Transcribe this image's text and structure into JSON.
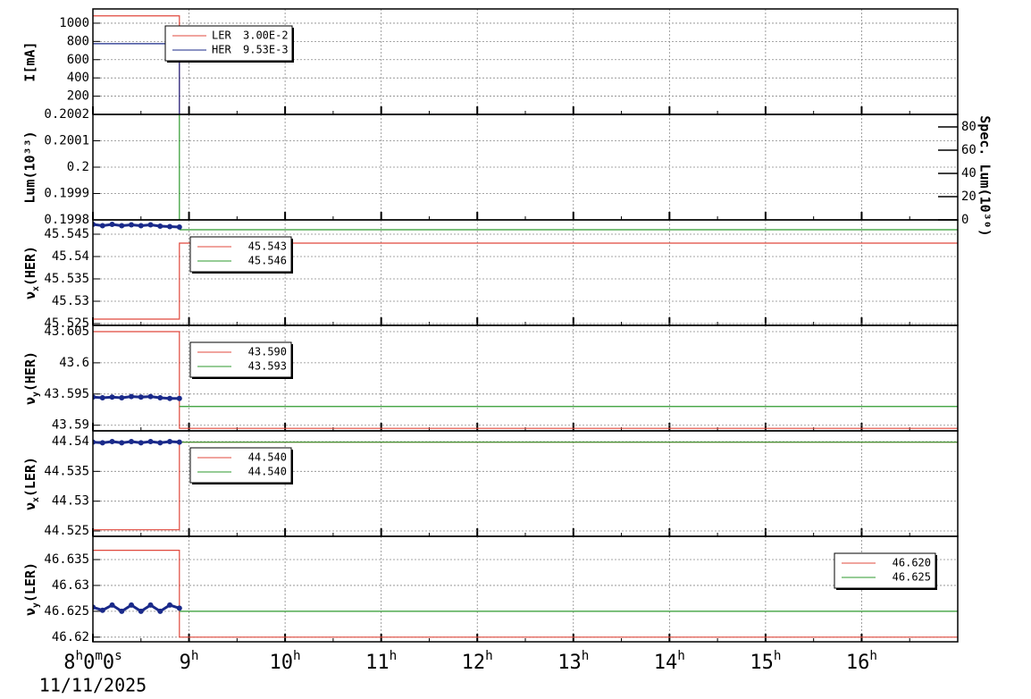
{
  "time_axis": {
    "xlim": [
      8,
      17
    ],
    "date": "11/11/2025",
    "xticks": [
      {
        "value": 8,
        "label": "8h0m0s"
      },
      {
        "value": 9,
        "label": "9h"
      },
      {
        "value": 10,
        "label": "10h"
      },
      {
        "value": 11,
        "label": "11h"
      },
      {
        "value": 12,
        "label": "12h"
      },
      {
        "value": 13,
        "label": "13h"
      },
      {
        "value": 14,
        "label": "14h"
      },
      {
        "value": 15,
        "label": "15h"
      },
      {
        "value": 16,
        "label": "16h"
      }
    ]
  },
  "chart_data": [
    {
      "type": "line",
      "ylabel": "I[mA]",
      "ylim": [
        0,
        1156
      ],
      "yticks": [
        200,
        400,
        600,
        800,
        1000
      ],
      "grid": true,
      "legend": "upper left",
      "series": [
        {
          "name": "LER",
          "legend_value": "3.00E-2",
          "color": "#e0483c",
          "x": [
            8,
            8.9,
            8.9,
            17
          ],
          "values": [
            1080,
            1080,
            0,
            0
          ]
        },
        {
          "name": "HER",
          "legend_value": "9.53E-3",
          "color": "#1a2a8a",
          "x": [
            8,
            8.9,
            8.9,
            17
          ],
          "values": [
            775,
            775,
            0,
            0
          ]
        }
      ]
    },
    {
      "type": "line",
      "ylabel": "Lum(10³³)",
      "ylim": [
        0.1998,
        0.2002
      ],
      "yticks": [
        0.1998,
        0.1999,
        0.2,
        0.2001,
        0.2002
      ],
      "grid": true,
      "y2label": "Spec. Lum(10³⁰)",
      "y2lim": [
        0,
        90.8
      ],
      "y2ticks": [
        0,
        20,
        40,
        60,
        80
      ],
      "series": [
        {
          "color": "#2e9a2e",
          "x": [
            8.9,
            8.9
          ],
          "values": [
            0.1998,
            0.2002
          ]
        },
        {
          "color": "#1a2a8a",
          "x": [
            8.9,
            17
          ],
          "values": [
            0.2002,
            0.2002
          ]
        }
      ]
    },
    {
      "type": "line",
      "ylabel": "νx(HER)",
      "ylim": [
        45.5246,
        45.5482
      ],
      "yticks": [
        45.525,
        45.53,
        45.535,
        45.54,
        45.545
      ],
      "grid": true,
      "legend": "upper left",
      "series": [
        {
          "name": "45.543",
          "color": "#e0483c",
          "x": [
            8,
            8.9,
            8.9,
            17
          ],
          "values": [
            45.526,
            45.526,
            45.543,
            45.543
          ]
        },
        {
          "name": "45.546",
          "color": "#2e9a2e",
          "x": [
            8.9,
            17
          ],
          "values": [
            45.546,
            45.546
          ]
        },
        {
          "color": "#1a2a8a",
          "markers": true,
          "x": [
            8,
            8.1,
            8.2,
            8.3,
            8.4,
            8.5,
            8.6,
            8.7,
            8.8,
            8.9
          ],
          "values": [
            45.5472,
            45.5469,
            45.5472,
            45.5469,
            45.5471,
            45.5469,
            45.5471,
            45.5468,
            45.5467,
            45.5466
          ]
        }
      ]
    },
    {
      "type": "line",
      "ylabel": "νy(HER)",
      "ylim": [
        43.5891,
        43.606
      ],
      "yticks": [
        43.59,
        43.595,
        43.6,
        43.605
      ],
      "grid": true,
      "legend": "upper left",
      "series": [
        {
          "name": "43.590",
          "color": "#e0483c",
          "x": [
            8,
            8.9,
            8.9,
            17
          ],
          "values": [
            43.605,
            43.605,
            43.5895,
            43.5895
          ]
        },
        {
          "name": "43.593",
          "color": "#2e9a2e",
          "x": [
            8.9,
            17
          ],
          "values": [
            43.593,
            43.593
          ]
        },
        {
          "color": "#1a2a8a",
          "markers": true,
          "x": [
            8,
            8.1,
            8.2,
            8.3,
            8.4,
            8.5,
            8.6,
            8.7,
            8.8,
            8.9
          ],
          "values": [
            43.5945,
            43.5944,
            43.5945,
            43.5944,
            43.5946,
            43.5945,
            43.5946,
            43.5944,
            43.5943,
            43.5943
          ]
        }
      ]
    },
    {
      "type": "line",
      "ylabel": "νx(LER)",
      "ylim": [
        44.5241,
        44.5418
      ],
      "yticks": [
        44.525,
        44.53,
        44.535,
        44.54
      ],
      "grid": true,
      "legend": "upper left",
      "series": [
        {
          "name": "44.540",
          "color": "#e0483c",
          "x": [
            8,
            8.9,
            8.9,
            17
          ],
          "values": [
            44.5252,
            44.5252,
            44.5399,
            44.5399
          ]
        },
        {
          "name": "44.540",
          "color": "#2e9a2e",
          "x": [
            8.9,
            17
          ],
          "values": [
            44.5399,
            44.5399
          ]
        },
        {
          "color": "#1a2a8a",
          "markers": true,
          "x": [
            8,
            8.1,
            8.2,
            8.3,
            8.4,
            8.5,
            8.6,
            8.7,
            8.8,
            8.9
          ],
          "values": [
            44.5399,
            44.5398,
            44.54,
            44.5398,
            44.54,
            44.5398,
            44.54,
            44.5398,
            44.54,
            44.5399
          ]
        }
      ]
    },
    {
      "type": "line",
      "ylabel": "νy(LER)",
      "ylim": [
        46.6191,
        46.6395
      ],
      "yticks": [
        46.62,
        46.625,
        46.63,
        46.635
      ],
      "grid": true,
      "legend": "upper right",
      "series": [
        {
          "name": "46.620",
          "color": "#e0483c",
          "x": [
            8,
            8.9,
            8.9,
            17
          ],
          "values": [
            46.6368,
            46.6368,
            46.62,
            46.62
          ]
        },
        {
          "name": "46.625",
          "color": "#2e9a2e",
          "x": [
            8.9,
            17
          ],
          "values": [
            46.625,
            46.625
          ]
        },
        {
          "color": "#1a2a8a",
          "markers": true,
          "x": [
            8,
            8.1,
            8.2,
            8.3,
            8.4,
            8.5,
            8.6,
            8.7,
            8.8,
            8.9
          ],
          "values": [
            46.6258,
            46.6252,
            46.6262,
            46.625,
            46.6262,
            46.625,
            46.6262,
            46.625,
            46.6262,
            46.6256
          ]
        }
      ]
    }
  ]
}
